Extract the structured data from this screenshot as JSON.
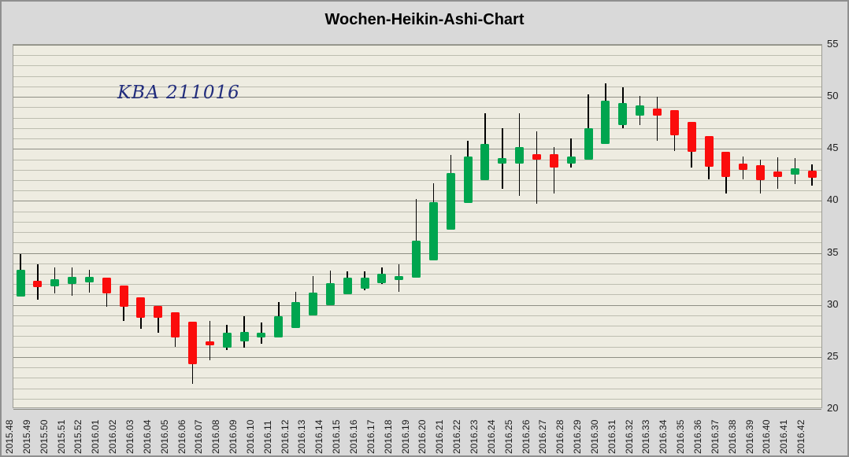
{
  "header": {
    "title": "Wochen-Heikin-Ashi-Chart",
    "watermark": "KBA 211016"
  },
  "colors": {
    "up": "#00a54f",
    "down": "#fb0c0c",
    "wick": "#000000",
    "plot_background": "#eeece1",
    "frame_background": "#d9d9d9",
    "watermark_text": "#222d7d"
  },
  "chart_data": {
    "type": "candlestick",
    "subtype": "heikin-ashi-weekly",
    "title": "Wochen-Heikin-Ashi-Chart",
    "annotation": "KBA 211016",
    "legend": "none",
    "grid": "horizontal-minor-and-major",
    "y_axis": {
      "side": "right",
      "min": 20,
      "max": 55,
      "tick_step": 5,
      "minor_step": 1,
      "ticks": [
        55,
        50,
        45,
        40,
        35,
        30,
        25,
        20
      ]
    },
    "x_axis": {
      "label_rotation": -90,
      "labels": [
        "2015.48",
        "2015.49",
        "2015.50",
        "2015.51",
        "2015.52",
        "2016.01",
        "2016.02",
        "2016.03",
        "2016.04",
        "2016.05",
        "2016.06",
        "2016.07",
        "2016.08",
        "2016.09",
        "2016.10",
        "2016.11",
        "2016.12",
        "2016.13",
        "2016.14",
        "2016.15",
        "2016.16",
        "2016.17",
        "2016.18",
        "2016.19",
        "2016.20",
        "2016.21",
        "2016.22",
        "2016.23",
        "2016.24",
        "2016.25",
        "2016.26",
        "2016.27",
        "2016.28",
        "2016.29",
        "2016.30",
        "2016.31",
        "2016.32",
        "2016.33",
        "2016.34",
        "2016.35",
        "2016.36",
        "2016.37",
        "2016.38",
        "2016.39",
        "2016.40",
        "2016.41",
        "2016.42"
      ]
    },
    "candles": [
      {
        "week": "2015.48",
        "open": 30.8,
        "high": 34.9,
        "low": 30.8,
        "close": 33.4,
        "direction": "up"
      },
      {
        "week": "2015.49",
        "open": 32.3,
        "high": 33.9,
        "low": 30.5,
        "close": 31.7,
        "direction": "down"
      },
      {
        "week": "2015.50",
        "open": 31.8,
        "high": 33.6,
        "low": 31.1,
        "close": 32.5,
        "direction": "up"
      },
      {
        "week": "2015.51",
        "open": 32.0,
        "high": 33.6,
        "low": 30.9,
        "close": 32.7,
        "direction": "up"
      },
      {
        "week": "2015.52",
        "open": 32.2,
        "high": 33.4,
        "low": 31.2,
        "close": 32.7,
        "direction": "up"
      },
      {
        "week": "2016.01",
        "open": 32.6,
        "high": 32.6,
        "low": 29.8,
        "close": 31.1,
        "direction": "down"
      },
      {
        "week": "2016.02",
        "open": 31.9,
        "high": 31.9,
        "low": 28.5,
        "close": 29.8,
        "direction": "down"
      },
      {
        "week": "2016.03",
        "open": 30.7,
        "high": 30.7,
        "low": 27.7,
        "close": 28.8,
        "direction": "down"
      },
      {
        "week": "2016.04",
        "open": 29.9,
        "high": 29.9,
        "low": 27.3,
        "close": 28.8,
        "direction": "down"
      },
      {
        "week": "2016.05",
        "open": 29.3,
        "high": 29.3,
        "low": 26.0,
        "close": 26.9,
        "direction": "down"
      },
      {
        "week": "2016.06",
        "open": 28.4,
        "high": 28.4,
        "low": 22.4,
        "close": 24.3,
        "direction": "down"
      },
      {
        "week": "2016.07",
        "open": 26.5,
        "high": 28.5,
        "low": 24.7,
        "close": 26.1,
        "direction": "down"
      },
      {
        "week": "2016.08",
        "open": 25.9,
        "high": 28.1,
        "low": 25.7,
        "close": 27.3,
        "direction": "up"
      },
      {
        "week": "2016.09",
        "open": 26.5,
        "high": 28.9,
        "low": 25.9,
        "close": 27.4,
        "direction": "up"
      },
      {
        "week": "2016.10",
        "open": 26.9,
        "high": 28.3,
        "low": 26.3,
        "close": 27.3,
        "direction": "up"
      },
      {
        "week": "2016.11",
        "open": 26.9,
        "high": 30.3,
        "low": 26.9,
        "close": 28.9,
        "direction": "up"
      },
      {
        "week": "2016.12",
        "open": 27.8,
        "high": 31.3,
        "low": 27.8,
        "close": 30.3,
        "direction": "up"
      },
      {
        "week": "2016.13",
        "open": 29.0,
        "high": 32.8,
        "low": 29.0,
        "close": 31.2,
        "direction": "up"
      },
      {
        "week": "2016.14",
        "open": 30.0,
        "high": 33.3,
        "low": 30.0,
        "close": 32.1,
        "direction": "up"
      },
      {
        "week": "2016.15",
        "open": 31.0,
        "high": 33.2,
        "low": 31.0,
        "close": 32.6,
        "direction": "up"
      },
      {
        "week": "2016.16",
        "open": 31.6,
        "high": 33.2,
        "low": 31.4,
        "close": 32.6,
        "direction": "up"
      },
      {
        "week": "2016.17",
        "open": 32.1,
        "high": 33.6,
        "low": 32.0,
        "close": 33.0,
        "direction": "up"
      },
      {
        "week": "2016.18",
        "open": 32.4,
        "high": 33.9,
        "low": 31.3,
        "close": 32.8,
        "direction": "up"
      },
      {
        "week": "2016.19",
        "open": 32.6,
        "high": 40.2,
        "low": 32.6,
        "close": 36.2,
        "direction": "up"
      },
      {
        "week": "2016.20",
        "open": 34.3,
        "high": 41.7,
        "low": 34.3,
        "close": 39.9,
        "direction": "up"
      },
      {
        "week": "2016.21",
        "open": 37.2,
        "high": 44.4,
        "low": 37.2,
        "close": 42.7,
        "direction": "up"
      },
      {
        "week": "2016.22",
        "open": 39.8,
        "high": 45.8,
        "low": 39.8,
        "close": 44.3,
        "direction": "up"
      },
      {
        "week": "2016.23",
        "open": 42.0,
        "high": 48.4,
        "low": 42.0,
        "close": 45.5,
        "direction": "up"
      },
      {
        "week": "2016.24",
        "open": 43.6,
        "high": 47.0,
        "low": 41.2,
        "close": 44.1,
        "direction": "up"
      },
      {
        "week": "2016.25",
        "open": 43.6,
        "high": 48.4,
        "low": 40.5,
        "close": 45.2,
        "direction": "up"
      },
      {
        "week": "2016.26",
        "open": 44.5,
        "high": 46.7,
        "low": 39.7,
        "close": 44.0,
        "direction": "down"
      },
      {
        "week": "2016.27",
        "open": 44.5,
        "high": 45.2,
        "low": 40.7,
        "close": 43.2,
        "direction": "down"
      },
      {
        "week": "2016.28",
        "open": 43.6,
        "high": 46.0,
        "low": 43.2,
        "close": 44.3,
        "direction": "up"
      },
      {
        "week": "2016.29",
        "open": 44.0,
        "high": 50.2,
        "low": 44.0,
        "close": 47.0,
        "direction": "up"
      },
      {
        "week": "2016.30",
        "open": 45.5,
        "high": 51.3,
        "low": 45.5,
        "close": 49.6,
        "direction": "up"
      },
      {
        "week": "2016.31",
        "open": 47.3,
        "high": 50.9,
        "low": 47.0,
        "close": 49.4,
        "direction": "up"
      },
      {
        "week": "2016.32",
        "open": 48.2,
        "high": 50.1,
        "low": 47.3,
        "close": 49.2,
        "direction": "up"
      },
      {
        "week": "2016.33",
        "open": 48.9,
        "high": 50.0,
        "low": 45.8,
        "close": 48.2,
        "direction": "down"
      },
      {
        "week": "2016.34",
        "open": 48.7,
        "high": 48.7,
        "low": 44.8,
        "close": 46.3,
        "direction": "down"
      },
      {
        "week": "2016.35",
        "open": 47.6,
        "high": 47.6,
        "low": 43.2,
        "close": 44.7,
        "direction": "down"
      },
      {
        "week": "2016.36",
        "open": 46.2,
        "high": 46.2,
        "low": 42.1,
        "close": 43.3,
        "direction": "down"
      },
      {
        "week": "2016.37",
        "open": 44.7,
        "high": 44.7,
        "low": 40.7,
        "close": 42.3,
        "direction": "down"
      },
      {
        "week": "2016.38",
        "open": 43.6,
        "high": 44.3,
        "low": 42.1,
        "close": 43.0,
        "direction": "down"
      },
      {
        "week": "2016.39",
        "open": 43.4,
        "high": 44.0,
        "low": 40.7,
        "close": 42.0,
        "direction": "down"
      },
      {
        "week": "2016.40",
        "open": 42.8,
        "high": 44.2,
        "low": 41.2,
        "close": 42.3,
        "direction": "down"
      },
      {
        "week": "2016.41",
        "open": 42.5,
        "high": 44.1,
        "low": 41.6,
        "close": 43.1,
        "direction": "up"
      },
      {
        "week": "2016.42",
        "open": 42.9,
        "high": 43.5,
        "low": 41.5,
        "close": 42.2,
        "direction": "down"
      }
    ]
  }
}
